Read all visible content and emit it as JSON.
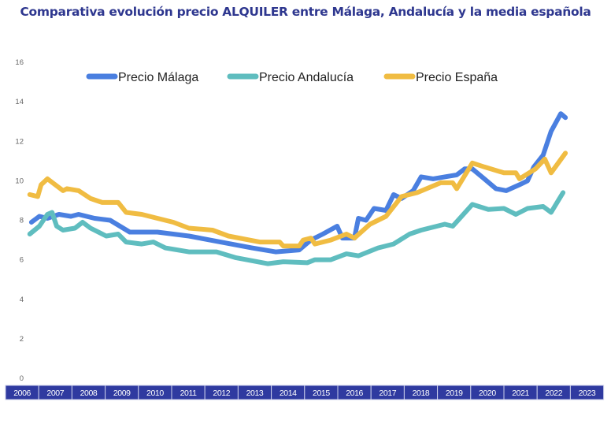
{
  "chart_data": {
    "type": "line",
    "title": "Comparativa evolución precio ALQUILER entre Málaga, Andalucía y la media española",
    "xlabel": "",
    "ylabel": "",
    "ylim": [
      0,
      16
    ],
    "yticks": [
      "0",
      "2",
      "4",
      "6",
      "8",
      "10",
      "12",
      "14",
      "16"
    ],
    "xlim": [
      2006,
      2024
    ],
    "xticks": [
      "2006",
      "2007",
      "2008",
      "2009",
      "2010",
      "2011",
      "2012",
      "2013",
      "2014",
      "2015",
      "2016",
      "2017",
      "2018",
      "2019",
      "2020",
      "2021",
      "2022",
      "2023"
    ],
    "grid": false,
    "legend_position": "top",
    "series": [
      {
        "name": "Precio Málaga",
        "color": "#4a7fe0",
        "points": [
          [
            2006.78,
            7.9
          ],
          [
            2007.02,
            8.2
          ],
          [
            2007.26,
            8.1
          ],
          [
            2007.61,
            8.3
          ],
          [
            2007.97,
            8.2
          ],
          [
            2008.2,
            8.3
          ],
          [
            2008.68,
            8.1
          ],
          [
            2009.15,
            8.0
          ],
          [
            2009.74,
            7.4
          ],
          [
            2010.57,
            7.4
          ],
          [
            2011.52,
            7.2
          ],
          [
            2012.47,
            6.9
          ],
          [
            2013.42,
            6.6
          ],
          [
            2014.13,
            6.4
          ],
          [
            2014.84,
            6.5
          ],
          [
            2015.19,
            7.0
          ],
          [
            2015.55,
            7.3
          ],
          [
            2015.98,
            7.7
          ],
          [
            2016.14,
            7.1
          ],
          [
            2016.5,
            7.1
          ],
          [
            2016.62,
            8.1
          ],
          [
            2016.85,
            8.0
          ],
          [
            2017.09,
            8.6
          ],
          [
            2017.45,
            8.5
          ],
          [
            2017.68,
            9.3
          ],
          [
            2017.92,
            9.1
          ],
          [
            2018.27,
            9.5
          ],
          [
            2018.51,
            10.2
          ],
          [
            2018.87,
            10.1
          ],
          [
            2019.22,
            10.2
          ],
          [
            2019.58,
            10.3
          ],
          [
            2019.82,
            10.6
          ],
          [
            2020.05,
            10.6
          ],
          [
            2020.41,
            10.1
          ],
          [
            2020.76,
            9.6
          ],
          [
            2021.07,
            9.5
          ],
          [
            2021.47,
            9.8
          ],
          [
            2021.71,
            10.0
          ],
          [
            2021.9,
            10.7
          ],
          [
            2022.18,
            11.3
          ],
          [
            2022.42,
            12.5
          ],
          [
            2022.71,
            13.4
          ],
          [
            2022.85,
            13.2
          ]
        ]
      },
      {
        "name": "Precio Andalucía",
        "color": "#5fbdbf",
        "points": [
          [
            2006.73,
            7.3
          ],
          [
            2007.02,
            7.7
          ],
          [
            2007.26,
            8.3
          ],
          [
            2007.4,
            8.4
          ],
          [
            2007.54,
            7.7
          ],
          [
            2007.73,
            7.5
          ],
          [
            2008.09,
            7.6
          ],
          [
            2008.32,
            7.9
          ],
          [
            2008.56,
            7.6
          ],
          [
            2009.03,
            7.2
          ],
          [
            2009.39,
            7.3
          ],
          [
            2009.63,
            6.9
          ],
          [
            2010.1,
            6.8
          ],
          [
            2010.45,
            6.9
          ],
          [
            2010.81,
            6.6
          ],
          [
            2011.52,
            6.4
          ],
          [
            2012.35,
            6.4
          ],
          [
            2012.94,
            6.1
          ],
          [
            2013.89,
            5.8
          ],
          [
            2014.36,
            5.9
          ],
          [
            2015.08,
            5.85
          ],
          [
            2015.31,
            6.0
          ],
          [
            2015.79,
            6.0
          ],
          [
            2016.26,
            6.3
          ],
          [
            2016.62,
            6.2
          ],
          [
            2017.21,
            6.6
          ],
          [
            2017.68,
            6.8
          ],
          [
            2018.16,
            7.3
          ],
          [
            2018.51,
            7.5
          ],
          [
            2019.22,
            7.8
          ],
          [
            2019.46,
            7.7
          ],
          [
            2020.05,
            8.8
          ],
          [
            2020.53,
            8.55
          ],
          [
            2021.0,
            8.6
          ],
          [
            2021.36,
            8.3
          ],
          [
            2021.71,
            8.6
          ],
          [
            2022.18,
            8.7
          ],
          [
            2022.42,
            8.4
          ],
          [
            2022.78,
            9.4
          ]
        ]
      },
      {
        "name": "Precio España",
        "color": "#f0bc42",
        "points": [
          [
            2006.73,
            9.3
          ],
          [
            2006.97,
            9.2
          ],
          [
            2007.07,
            9.8
          ],
          [
            2007.26,
            10.1
          ],
          [
            2007.73,
            9.5
          ],
          [
            2007.85,
            9.6
          ],
          [
            2008.2,
            9.5
          ],
          [
            2008.56,
            9.1
          ],
          [
            2008.91,
            8.9
          ],
          [
            2009.39,
            8.9
          ],
          [
            2009.63,
            8.4
          ],
          [
            2010.1,
            8.3
          ],
          [
            2010.57,
            8.1
          ],
          [
            2011.05,
            7.9
          ],
          [
            2011.52,
            7.6
          ],
          [
            2012.23,
            7.5
          ],
          [
            2012.71,
            7.2
          ],
          [
            2013.65,
            6.9
          ],
          [
            2014.25,
            6.9
          ],
          [
            2014.36,
            6.7
          ],
          [
            2014.84,
            6.7
          ],
          [
            2014.96,
            7.0
          ],
          [
            2015.19,
            7.1
          ],
          [
            2015.31,
            6.8
          ],
          [
            2015.79,
            7.0
          ],
          [
            2016.26,
            7.3
          ],
          [
            2016.5,
            7.1
          ],
          [
            2016.97,
            7.8
          ],
          [
            2017.45,
            8.2
          ],
          [
            2017.92,
            9.2
          ],
          [
            2018.39,
            9.4
          ],
          [
            2019.1,
            9.9
          ],
          [
            2019.46,
            9.9
          ],
          [
            2019.58,
            9.6
          ],
          [
            2020.05,
            10.9
          ],
          [
            2020.41,
            10.7
          ],
          [
            2021.0,
            10.4
          ],
          [
            2021.36,
            10.4
          ],
          [
            2021.47,
            10.1
          ],
          [
            2021.95,
            10.6
          ],
          [
            2022.23,
            11.1
          ],
          [
            2022.42,
            10.4
          ],
          [
            2022.85,
            11.4
          ]
        ]
      }
    ]
  }
}
